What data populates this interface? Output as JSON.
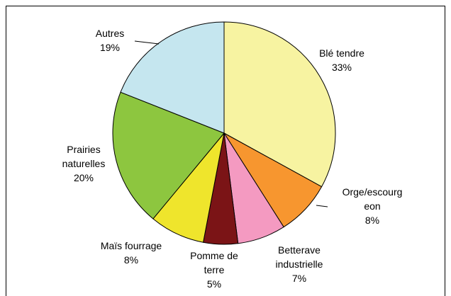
{
  "chart_data": {
    "type": "pie",
    "categories": [
      "Blé tendre",
      "Orge/escourg\neon",
      "Betterave\nindustrielle",
      "Pomme de\nterre",
      "Maïs fourrage",
      "Prairies\nnaturelles",
      "Autres"
    ],
    "values": [
      33,
      8,
      7,
      5,
      8,
      20,
      19
    ],
    "value_labels": [
      "33%",
      "8%",
      "7%",
      "5%",
      "8%",
      "20%",
      "19%"
    ],
    "colors": [
      "#f7f3a1",
      "#f7962f",
      "#f49ac1",
      "#7b1416",
      "#efe52c",
      "#8dc63f",
      "#c5e6ef"
    ]
  }
}
